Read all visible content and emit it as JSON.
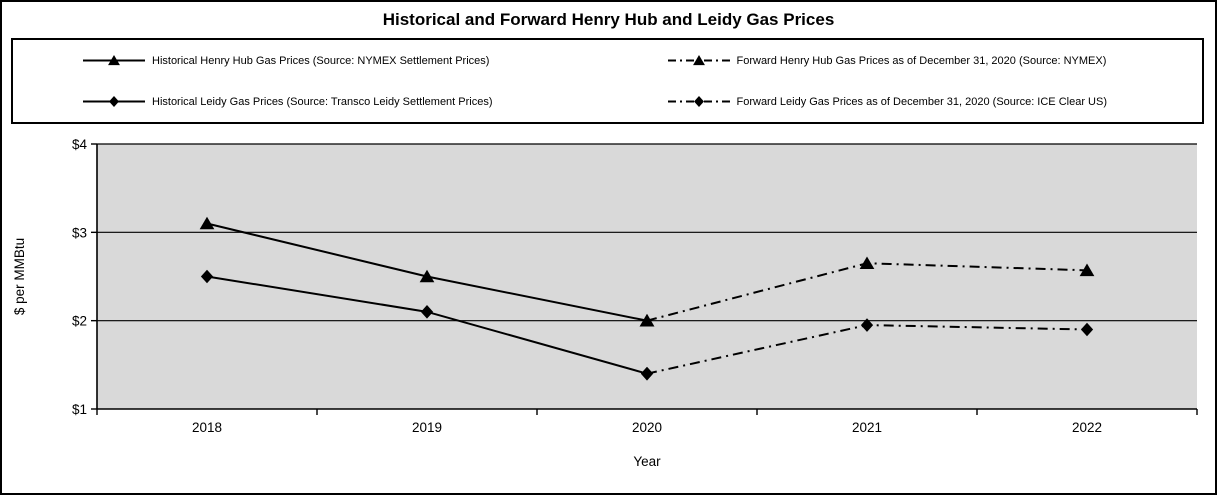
{
  "chart_data": {
    "type": "line",
    "title": "Historical and Forward Henry Hub and Leidy Gas Prices",
    "categories": [
      "2018",
      "2019",
      "2020",
      "2021",
      "2022"
    ],
    "series": [
      {
        "name": "Historical Henry Hub Gas Prices (Source: NYMEX Settlement Prices)",
        "values": [
          3.1,
          2.5,
          2.0,
          null,
          null
        ],
        "marker": "triangle",
        "line": "solid"
      },
      {
        "name": "Forward Henry Hub Gas Prices as of December 31, 2020 (Source: NYMEX)",
        "values": [
          null,
          null,
          2.0,
          2.65,
          2.57
        ],
        "marker": "triangle",
        "line": "dashdot"
      },
      {
        "name": "Historical Leidy Gas Prices (Source: Transco Leidy Settlement Prices)",
        "values": [
          2.5,
          2.1,
          1.4,
          null,
          null
        ],
        "marker": "diamond",
        "line": "solid"
      },
      {
        "name": "Forward Leidy Gas Prices as of December 31, 2020 (Source: ICE Clear US)",
        "values": [
          null,
          null,
          1.4,
          1.95,
          1.9
        ],
        "marker": "diamond",
        "line": "dashdot"
      }
    ],
    "xlabel": "Year",
    "ylabel": "$ per MMBtu",
    "ylim": [
      1,
      4
    ],
    "yticks": [
      1,
      2,
      3,
      4
    ],
    "ytick_labels": [
      "$1",
      "$2",
      "$3",
      "$4"
    ],
    "grid": true,
    "legend_position": "top",
    "plot_bg": "#d9d9d9",
    "line_color": "#000000",
    "background": "#ffffff"
  }
}
